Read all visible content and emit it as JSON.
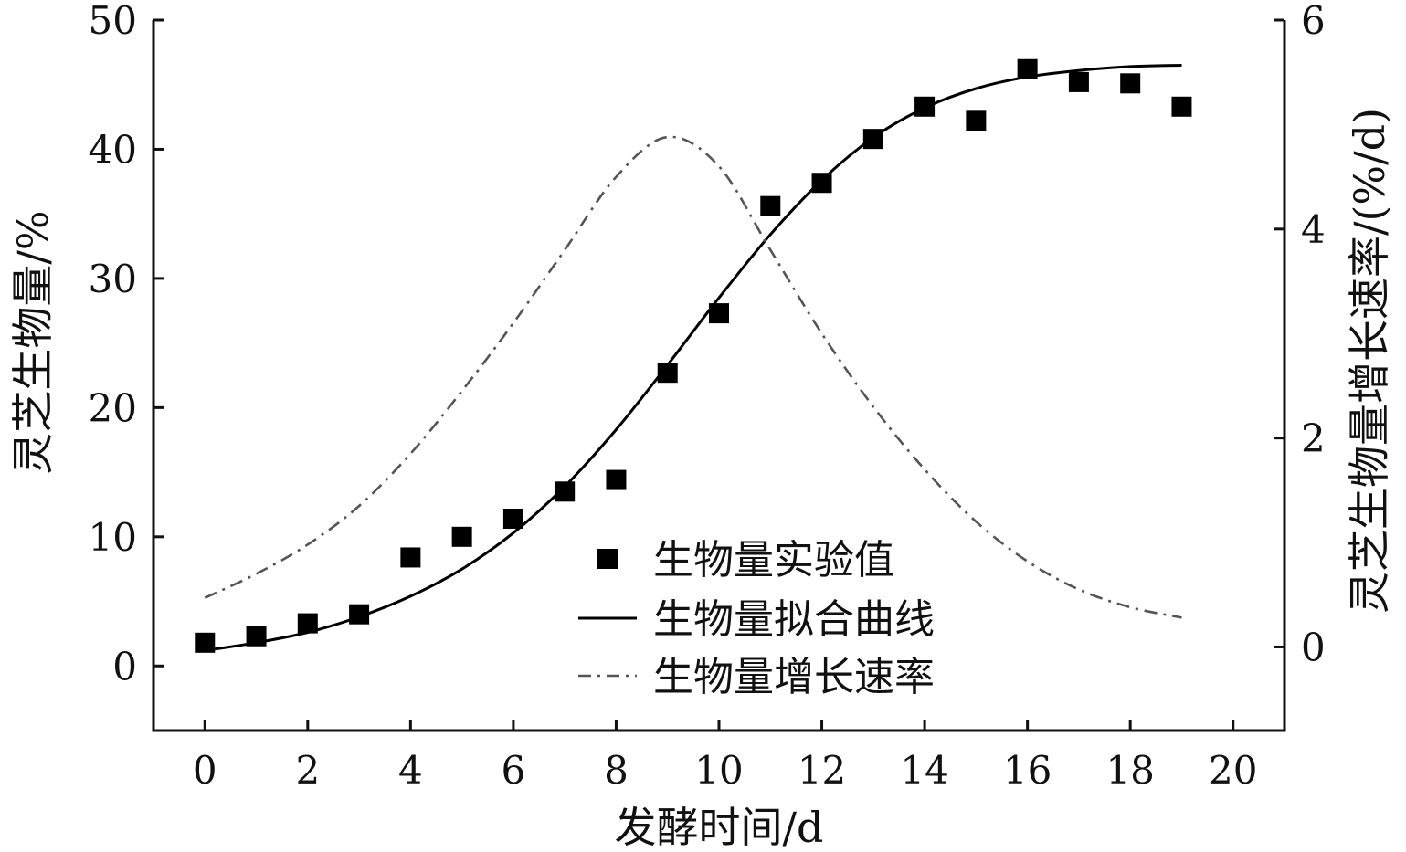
{
  "chart_data": {
    "type": "scatter",
    "xlabel": "发酵时间/d",
    "ylabel_left": "灵芝生物量/%",
    "ylabel_right": "灵芝生物量增长速率/(%/d)",
    "xlim": [
      -1,
      21
    ],
    "ylim_left": [
      -5,
      50
    ],
    "ylim_right": [
      -0.8,
      6
    ],
    "x_ticks": [
      0,
      2,
      4,
      6,
      8,
      10,
      12,
      14,
      16,
      18,
      20
    ],
    "y_left_ticks": [
      0,
      10,
      20,
      30,
      40,
      50
    ],
    "y_right_ticks": [
      0,
      2,
      4,
      6
    ],
    "grid": false,
    "legend_position": "center-bottom",
    "series": [
      {
        "name": "生物量实验值",
        "kind": "scatter",
        "axis": "left",
        "marker": "square",
        "color": "#000000",
        "x": [
          0,
          1,
          2,
          3,
          4,
          5,
          6,
          7,
          8,
          9,
          10,
          11,
          12,
          13,
          14,
          15,
          16,
          17,
          18,
          19
        ],
        "y": [
          1.8,
          2.3,
          3.3,
          4.0,
          8.4,
          10.0,
          11.4,
          13.5,
          14.4,
          22.7,
          27.3,
          35.6,
          37.4,
          40.8,
          43.3,
          42.2,
          46.2,
          45.2,
          45.1,
          43.3
        ]
      },
      {
        "name": "生物量拟合曲线",
        "kind": "line",
        "axis": "left",
        "style": "solid",
        "color": "#000000",
        "x": [
          0,
          1,
          2,
          3,
          4,
          5,
          6,
          7,
          8,
          9,
          10,
          11,
          12,
          13,
          14,
          15,
          16,
          17,
          18,
          19
        ],
        "y": [
          1.2,
          1.8,
          2.6,
          3.8,
          5.4,
          7.5,
          10.3,
          13.9,
          18.3,
          23.3,
          28.5,
          33.4,
          37.6,
          40.9,
          43.2,
          44.7,
          45.6,
          46.1,
          46.4,
          46.5
        ]
      },
      {
        "name": "生物量增长速率",
        "kind": "line",
        "axis": "right",
        "style": "dash-dot",
        "color": "#555555",
        "x": [
          0,
          1,
          2,
          3,
          4,
          5,
          6,
          7,
          8,
          9,
          10,
          11,
          12,
          13,
          14,
          15,
          16,
          17,
          18,
          19
        ],
        "y": [
          0.47,
          0.7,
          0.98,
          1.35,
          1.85,
          2.45,
          3.1,
          3.8,
          4.5,
          4.88,
          4.6,
          3.8,
          3.0,
          2.3,
          1.7,
          1.2,
          0.82,
          0.55,
          0.38,
          0.28
        ]
      }
    ]
  }
}
